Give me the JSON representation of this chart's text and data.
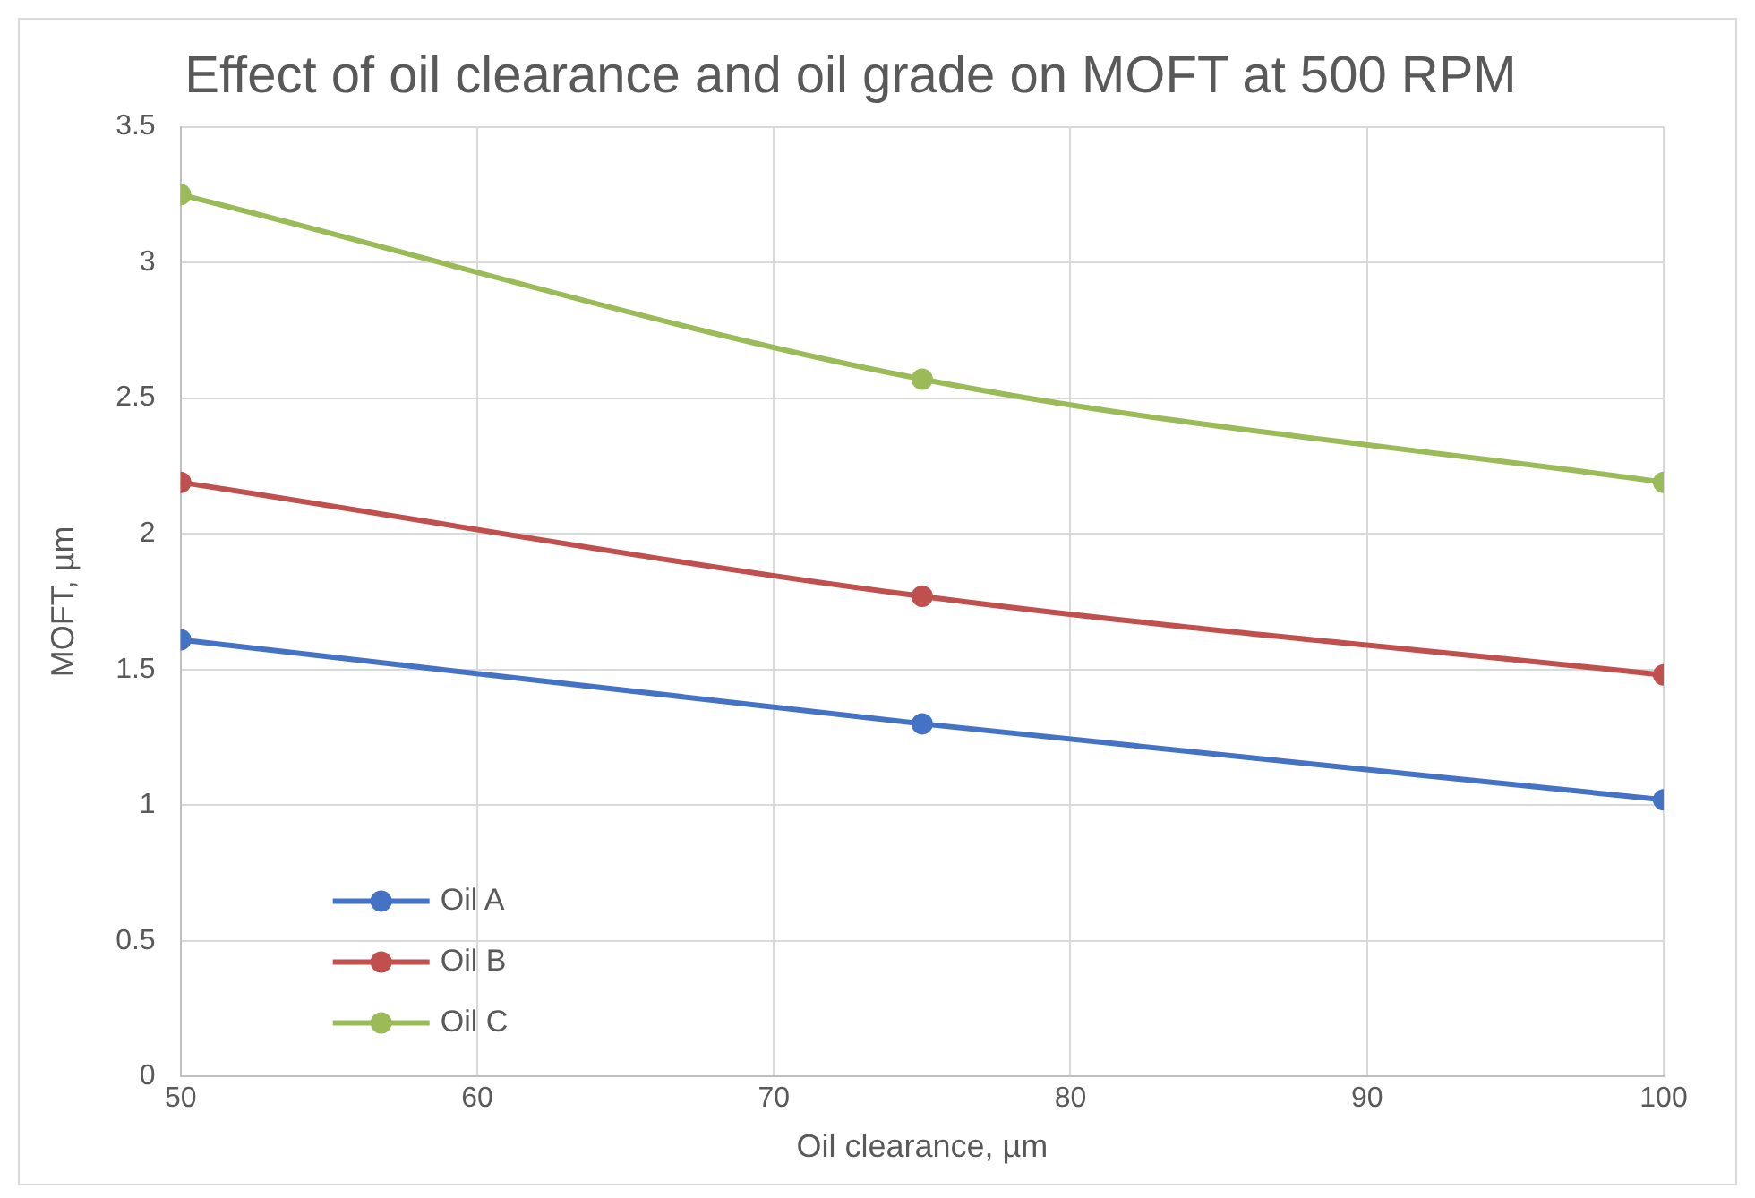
{
  "chart_data": {
    "type": "line",
    "title": "Effect of oil clearance and oil grade on MOFT at 500 RPM",
    "xlabel": "Oil clearance, µm",
    "ylabel": "MOFT, µm",
    "x": [
      50,
      75,
      100
    ],
    "series": [
      {
        "name": "Oil A",
        "color": "#4472c4",
        "values": [
          1.61,
          1.3,
          1.02
        ]
      },
      {
        "name": "Oil B",
        "color": "#c0504d",
        "values": [
          2.19,
          1.77,
          1.48
        ]
      },
      {
        "name": "Oil C",
        "color": "#9bbb59",
        "values": [
          3.25,
          2.57,
          2.19
        ]
      }
    ],
    "xlim": [
      50,
      100
    ],
    "xticks": [
      50,
      60,
      70,
      80,
      90,
      100
    ],
    "ylim": [
      0,
      3.5
    ],
    "yticks": [
      0,
      0.5,
      1,
      1.5,
      2,
      2.5,
      3,
      3.5
    ],
    "grid": true,
    "legend": "bottom left",
    "marker": "circle",
    "line_style": "solid"
  }
}
